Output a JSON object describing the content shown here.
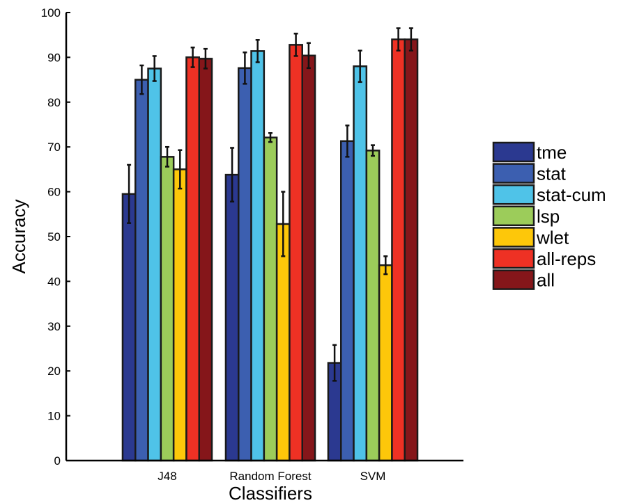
{
  "chart_data": {
    "type": "bar",
    "xlabel": "Classifiers",
    "ylabel": "Accuracy",
    "ylim": [
      0,
      100
    ],
    "yticks": [
      0,
      10,
      20,
      30,
      40,
      50,
      60,
      70,
      80,
      90,
      100
    ],
    "categories": [
      "J48",
      "Random Forest",
      "SVM"
    ],
    "legend_position": "right",
    "series": [
      {
        "name": "tme",
        "color": "#2b3990",
        "values": [
          59.5,
          63.8,
          21.8
        ],
        "errors": [
          6.5,
          6.0,
          4.0
        ]
      },
      {
        "name": "stat",
        "color": "#3c5fb0",
        "values": [
          85.0,
          87.6,
          71.3
        ],
        "errors": [
          3.2,
          3.5,
          3.5
        ]
      },
      {
        "name": "stat-cum",
        "color": "#4fc3e8",
        "values": [
          87.5,
          91.4,
          88.0
        ],
        "errors": [
          2.8,
          2.5,
          3.5
        ]
      },
      {
        "name": "lsp",
        "color": "#9ccc5a",
        "values": [
          67.8,
          72.1,
          69.2
        ],
        "errors": [
          2.2,
          1.0,
          1.2
        ]
      },
      {
        "name": "wlet",
        "color": "#fdc70a",
        "values": [
          65.0,
          52.8,
          43.6
        ],
        "errors": [
          4.3,
          7.2,
          2.0
        ]
      },
      {
        "name": "all-reps",
        "color": "#ee3124",
        "values": [
          90.0,
          92.8,
          94.0
        ],
        "errors": [
          2.2,
          2.5,
          2.5
        ]
      },
      {
        "name": "all",
        "color": "#85161a",
        "values": [
          89.7,
          90.4,
          94.0
        ],
        "errors": [
          2.2,
          2.8,
          2.5
        ]
      }
    ]
  }
}
